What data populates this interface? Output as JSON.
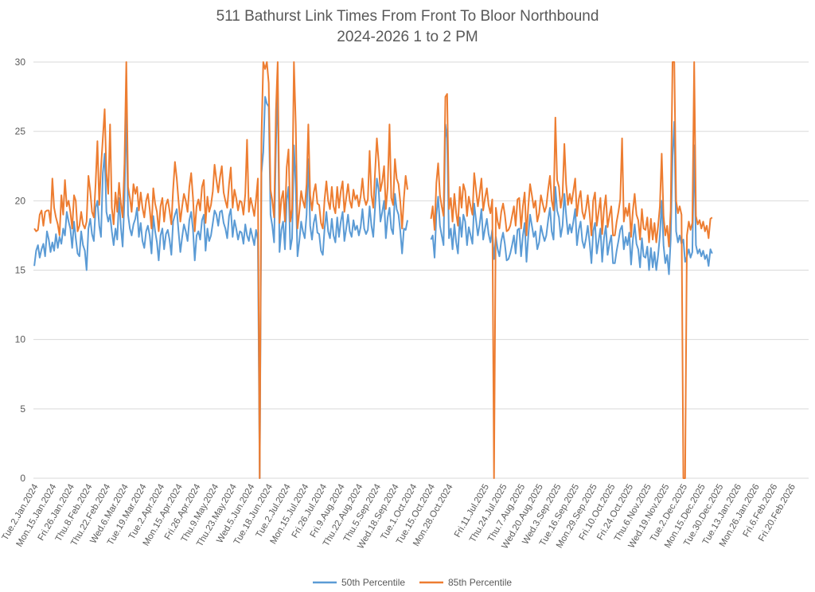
{
  "chart_data": {
    "type": "line",
    "title": "511 Bathurst Link Times From Front To Bloor Northbound",
    "subtitle": "2024-2026 1 to 2 PM",
    "xlabel": "",
    "ylabel": "",
    "ylim": [
      0,
      30
    ],
    "yticks": [
      0,
      5,
      10,
      15,
      20,
      25,
      30
    ],
    "grid": true,
    "legend_position": "bottom",
    "xtick_labels": [
      "Tue.2.Jan.2024",
      "Mon.15.Jan.2024",
      "Fri.26.Jan.2024",
      "Thu.8.Feb.2024",
      "Thu.22.Feb.2024",
      "Wed.6.Mar.2024",
      "Tue.19.Mar.2024",
      "Tue.2.Apr.2024",
      "Mon.15.Apr.2024",
      "Fri.26.Apr.2024",
      "Thu.9.May.2024",
      "Thu.23.May.2024",
      "Wed.5.Jun.2024",
      "Tue.18.Jun.2024",
      "Tue.2.Jul.2024",
      "Mon.15.Jul.2024",
      "Fri.26.Jul.2024",
      "Fri.9.Aug.2024",
      "Thu.22.Aug.2024",
      "Thu.5.Sep.2024",
      "Wed.18.Sep.2024",
      "Tue.1.Oct.2024",
      "Tue.15.Oct.2024",
      "Mon.28.Oct.2024",
      "",
      "Fri.11.Jul.2025",
      "Thu.24.Jul.2025",
      "Thu.7.Aug.2025",
      "Wed.20.Aug.2025",
      "Wed.3.Sep.2025",
      "Tue.16.Sep.2025",
      "Mon.29.Sep.2025",
      "Fri.10.Oct.2025",
      "Fri.24.Oct.2025",
      "Thu.6.Nov.2025",
      "Wed.19.Nov.2025",
      "Tue.2.Dec.2025",
      "Mon.15.Dec.2025",
      "Tue.30.Dec.2025",
      "Tue.13.Jan.2026",
      "Mon.26.Jan.2026",
      "Fri.6.Feb.2026",
      "Fri.20.Feb.2026"
    ],
    "x_count": 430,
    "series": [
      {
        "name": "50th Percentile",
        "color": "#5B9BD5",
        "values": [
          15.3,
          16.4,
          16.8,
          15.9,
          16.5,
          16.9,
          16.0,
          17.8,
          17.2,
          16.3,
          17.0,
          16.4,
          17.6,
          16.6,
          17.4,
          16.9,
          18.0,
          17.5,
          19.2,
          18.5,
          18.0,
          16.6,
          18.5,
          17.3,
          16.2,
          16.0,
          17.8,
          16.8,
          16.4,
          15.0,
          18.0,
          18.7,
          17.6,
          17.1,
          19.5,
          20.0,
          18.2,
          17.4,
          22.0,
          23.4,
          19.2,
          18.5,
          19.0,
          17.8,
          16.8,
          18.0,
          17.2,
          20.2,
          18.1,
          16.7,
          20.1,
          26.8,
          19.0,
          18.0,
          17.5,
          18.3,
          18.7,
          19.5,
          17.4,
          18.4,
          17.1,
          16.6,
          17.8,
          18.2,
          17.5,
          16.2,
          18.9,
          17.8,
          17.0,
          15.7,
          17.5,
          18.0,
          16.5,
          17.6,
          17.9,
          17.2,
          16.1,
          18.5,
          19.0,
          19.4,
          17.8,
          16.3,
          17.4,
          18.3,
          17.8,
          17.1,
          18.6,
          19.2,
          17.9,
          15.7,
          17.5,
          17.8,
          17.2,
          18.6,
          19.0,
          16.4,
          18.0,
          17.1,
          17.5,
          18.4,
          19.3,
          19.0,
          18.2,
          19.2,
          19.3,
          18.4,
          18.0,
          17.3,
          18.9,
          19.4,
          17.4,
          18.6,
          18.0,
          17.2,
          17.8,
          17.7,
          16.9,
          18.3,
          17.5,
          17.1,
          18.0,
          17.4,
          16.8,
          17.9,
          17.2,
          0.0,
          22.0,
          23.5,
          27.5,
          27.0,
          26.8,
          19.0,
          18.2,
          17.0,
          24.0,
          28.5,
          16.3,
          17.9,
          18.5,
          16.5,
          20.0,
          21.0,
          16.5,
          17.3,
          24.0,
          21.0,
          16.0,
          17.1,
          18.5,
          17.8,
          17.3,
          19.0,
          23.0,
          18.2,
          17.2,
          18.4,
          19.0,
          17.7,
          17.6,
          16.4,
          16.1,
          18.0,
          19.2,
          17.8,
          17.3,
          18.7,
          17.5,
          17.0,
          18.8,
          17.4,
          18.5,
          19.2,
          17.1,
          18.0,
          19.0,
          17.8,
          17.4,
          18.6,
          17.9,
          18.2,
          17.5,
          18.1,
          19.4,
          18.0,
          17.6,
          17.9,
          19.6,
          18.2,
          17.4,
          19.5,
          21.6,
          20.8,
          18.5,
          19.2,
          20.0,
          17.3,
          18.8,
          19.5,
          18.0,
          17.6,
          20.5,
          19.4,
          19.0,
          17.8,
          16.2,
          18.0,
          17.9,
          18.6,
          null,
          null,
          null,
          null,
          null,
          null,
          null,
          null,
          null,
          null,
          null,
          null,
          17.2,
          17.5,
          15.9,
          19.0,
          20.3,
          18.2,
          17.5,
          16.8,
          25.5,
          24.5,
          17.3,
          18.0,
          16.5,
          18.3,
          17.0,
          16.2,
          18.8,
          17.4,
          19.0,
          18.5,
          16.8,
          18.1,
          17.5,
          16.9,
          19.8,
          18.6,
          17.5,
          18.3,
          19.4,
          17.2,
          18.0,
          18.7,
          17.6,
          17.0,
          17.9,
          15.8,
          17.4,
          16.5,
          16.0,
          17.1,
          17.7,
          16.9,
          15.7,
          15.8,
          16.2,
          16.8,
          17.5,
          16.2,
          17.9,
          18.0,
          16.0,
          17.5,
          18.4,
          15.6,
          17.5,
          19.0,
          18.2,
          17.4,
          17.8,
          16.5,
          17.0,
          18.2,
          17.6,
          17.1,
          17.5,
          18.6,
          19.5,
          17.8,
          17.2,
          21.0,
          19.3,
          18.8,
          17.4,
          18.2,
          20.5,
          19.0,
          17.6,
          18.3,
          17.7,
          18.5,
          19.4,
          16.8,
          17.9,
          18.5,
          17.1,
          16.6,
          17.3,
          18.2,
          17.0,
          15.5,
          17.8,
          18.4,
          16.2,
          17.1,
          18.0,
          15.6,
          17.3,
          18.2,
          16.1,
          16.9,
          17.5,
          15.5,
          15.5,
          16.4,
          17.1,
          17.9,
          18.2,
          16.5,
          17.4,
          16.8,
          17.7,
          15.4,
          17.2,
          18.3,
          16.9,
          16.5,
          15.2,
          17.3,
          16.0,
          15.9,
          16.7,
          15.0,
          16.6,
          15.2,
          16.3,
          15.0,
          16.1,
          17.5,
          20.0,
          16.8,
          15.5,
          16.1,
          14.7,
          17.2,
          23.2,
          25.7,
          17.8,
          17.0,
          17.5,
          16.9,
          17.2,
          15.6,
          16.0,
          16.5,
          15.9,
          16.3,
          24.0,
          16.8,
          16.2,
          16.5,
          16.0,
          16.4,
          15.8,
          16.1,
          15.3,
          16.5,
          16.2,
          null,
          null,
          null,
          null,
          null,
          null,
          null,
          null,
          null,
          null,
          null,
          null,
          null,
          null,
          null,
          null,
          null,
          null,
          null,
          null,
          null,
          null,
          null,
          null,
          null,
          null,
          null,
          null,
          null,
          null,
          null,
          null,
          null,
          null,
          null,
          null,
          null,
          null,
          null,
          null,
          null,
          null,
          null,
          null,
          null,
          null,
          null,
          null,
          null,
          null,
          null,
          null,
          null
        ]
      },
      {
        "name": "85th Percentile",
        "color": "#ED7D31",
        "values": [
          18.0,
          17.8,
          17.9,
          19.0,
          19.3,
          18.2,
          19.2,
          19.3,
          19.3,
          18.4,
          21.6,
          19.5,
          18.8,
          18.3,
          17.5,
          20.4,
          19.0,
          21.5,
          19.6,
          20.0,
          19.2,
          18.0,
          20.4,
          20.0,
          17.8,
          18.2,
          19.2,
          18.3,
          18.0,
          18.5,
          21.8,
          20.7,
          19.2,
          18.8,
          21.2,
          24.3,
          19.7,
          22.4,
          24.5,
          26.6,
          22.0,
          20.5,
          25.5,
          19.5,
          18.3,
          20.6,
          19.2,
          21.3,
          19.8,
          18.8,
          22.7,
          30.0,
          21.0,
          20.2,
          19.2,
          21.2,
          20.5,
          21.0,
          19.3,
          20.6,
          19.5,
          18.8,
          20.0,
          20.5,
          19.4,
          18.0,
          20.9,
          19.8,
          19.2,
          17.8,
          19.6,
          20.2,
          18.5,
          19.7,
          20.1,
          19.3,
          18.3,
          20.8,
          22.8,
          21.6,
          20.0,
          18.5,
          19.6,
          20.5,
          20.0,
          19.2,
          21.0,
          22.0,
          20.2,
          17.8,
          19.6,
          20.1,
          19.3,
          21.0,
          21.5,
          18.4,
          20.3,
          19.2,
          19.7,
          20.7,
          22.6,
          21.5,
          20.6,
          21.7,
          22.5,
          20.6,
          20.0,
          19.5,
          21.2,
          22.4,
          19.5,
          20.8,
          20.2,
          19.3,
          20.0,
          19.9,
          19.0,
          20.5,
          24.4,
          19.2,
          20.2,
          19.6,
          18.9,
          20.1,
          21.6,
          0.0,
          24.5,
          30.0,
          29.5,
          30.0,
          28.5,
          20.8,
          20.0,
          18.8,
          26.5,
          30.0,
          18.4,
          20.1,
          20.7,
          18.5,
          22.4,
          23.7,
          18.5,
          19.4,
          30.0,
          25.5,
          18.0,
          19.2,
          20.7,
          20.0,
          19.5,
          21.2,
          25.5,
          20.4,
          19.3,
          20.6,
          21.2,
          19.8,
          19.7,
          18.4,
          18.0,
          20.1,
          21.4,
          20.0,
          19.4,
          21.0,
          19.6,
          19.1,
          21.0,
          19.5,
          20.7,
          21.4,
          19.2,
          20.2,
          21.2,
          20.0,
          19.5,
          20.8,
          20.1,
          20.4,
          19.6,
          20.3,
          21.6,
          20.2,
          19.7,
          20.1,
          23.6,
          20.4,
          19.5,
          22.0,
          24.5,
          22.8,
          20.7,
          21.4,
          22.5,
          19.4,
          21.0,
          25.5,
          20.2,
          19.7,
          23.0,
          21.6,
          21.2,
          19.9,
          18.0,
          20.2,
          21.8,
          20.8,
          null,
          null,
          null,
          null,
          null,
          null,
          null,
          null,
          null,
          null,
          null,
          null,
          18.7,
          19.6,
          17.9,
          21.3,
          22.7,
          20.4,
          19.6,
          18.9,
          27.5,
          27.7,
          19.4,
          20.2,
          18.5,
          20.5,
          19.1,
          18.2,
          21.0,
          19.5,
          21.2,
          20.7,
          18.9,
          20.3,
          19.6,
          19.0,
          22.0,
          20.8,
          19.6,
          20.5,
          21.6,
          19.3,
          20.2,
          20.9,
          19.7,
          19.1,
          20.1,
          0.0,
          19.5,
          18.5,
          18.0,
          19.2,
          19.8,
          19.0,
          17.8,
          17.9,
          18.2,
          18.9,
          19.6,
          18.2,
          20.1,
          20.2,
          18.0,
          19.6,
          20.6,
          17.5,
          19.6,
          21.2,
          20.4,
          19.5,
          20.0,
          18.5,
          19.1,
          20.4,
          19.8,
          19.2,
          19.6,
          20.8,
          21.8,
          20.0,
          19.3,
          26.0,
          21.5,
          21.0,
          19.5,
          20.4,
          24.1,
          21.2,
          19.7,
          20.5,
          19.8,
          20.7,
          21.6,
          18.9,
          20.1,
          20.7,
          19.2,
          18.7,
          19.4,
          20.4,
          19.1,
          17.5,
          20.0,
          20.6,
          18.2,
          19.2,
          20.2,
          17.6,
          19.4,
          20.4,
          18.1,
          18.9,
          19.6,
          17.5,
          17.5,
          18.5,
          19.2,
          20.1,
          24.5,
          18.5,
          19.5,
          18.9,
          19.8,
          17.4,
          19.3,
          20.5,
          19.0,
          18.6,
          17.2,
          19.4,
          18.0,
          17.9,
          18.8,
          17.0,
          18.7,
          17.2,
          18.4,
          17.0,
          18.2,
          19.6,
          23.4,
          18.9,
          17.5,
          18.2,
          16.7,
          19.3,
          30.0,
          30.0,
          20.0,
          19.1,
          19.6,
          19.0,
          0.0,
          0.0,
          17.5,
          18.5,
          17.9,
          18.4,
          30.0,
          18.9,
          18.3,
          18.6,
          18.0,
          18.5,
          17.8,
          18.2,
          17.3,
          18.7,
          18.8,
          null,
          null,
          null,
          null,
          null,
          null,
          null,
          null,
          null,
          null,
          null,
          null,
          null,
          null,
          null,
          null,
          null,
          null,
          null,
          null,
          null,
          null,
          null,
          null,
          null,
          null,
          null,
          null,
          null,
          null,
          null,
          null,
          null,
          null,
          null,
          null,
          null,
          null,
          null,
          null,
          null,
          null,
          null,
          null,
          null,
          null,
          null,
          null,
          null,
          null,
          null,
          null,
          null
        ]
      }
    ]
  }
}
